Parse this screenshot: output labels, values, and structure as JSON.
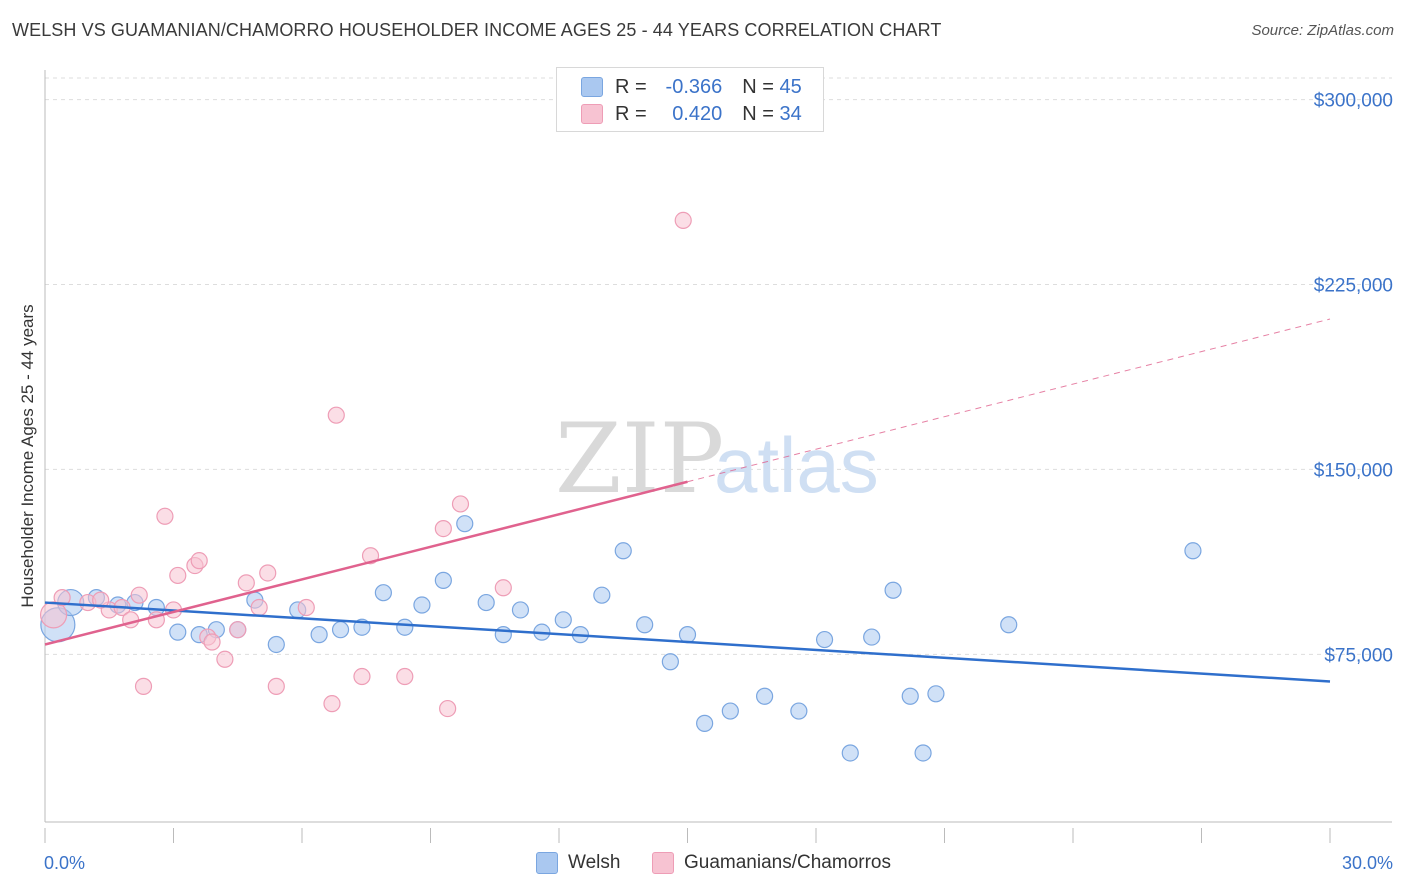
{
  "title": "WELSH VS GUAMANIAN/CHAMORRO HOUSEHOLDER INCOME AGES 25 - 44 YEARS CORRELATION CHART",
  "source": "Source: ZipAtlas.com",
  "watermark": {
    "zip": "ZIP",
    "atlas": "atlas"
  },
  "legend": {
    "rows": [
      {
        "r_label": "R =",
        "r_value": "-0.366",
        "n_label": "N =",
        "n_value": "45",
        "color": "#aac8f0",
        "border": "#7aa6e0"
      },
      {
        "r_label": "R =",
        "r_value": "0.420",
        "n_label": "N =",
        "n_value": "34",
        "color": "#f7c3d2",
        "border": "#ee9db6"
      }
    ]
  },
  "bottom_legend": [
    {
      "label": "Welsh",
      "color": "#aac8f0",
      "border": "#7aa6e0"
    },
    {
      "label": "Guamanians/Chamorros",
      "color": "#f7c3d2",
      "border": "#ee9db6"
    }
  ],
  "chart_data": {
    "type": "scatter",
    "ylabel": "Householder Income Ages 25 - 44 years",
    "x_tick_labels": [
      "0.0%",
      "30.0%"
    ],
    "y_tick_labels": [
      "$75,000",
      "$150,000",
      "$225,000",
      "$300,000"
    ],
    "y_ticks": [
      75000,
      150000,
      225000,
      300000
    ],
    "xlim": [
      0,
      30
    ],
    "ylim": [
      7000,
      312000
    ],
    "grid": true,
    "series": [
      {
        "name": "Welsh",
        "color": "#7aa6e0",
        "fill": "rgba(170,200,240,0.55)",
        "line_color": "#2f6fcc",
        "trend": {
          "x0": 0,
          "y0": 96000,
          "x1": 30,
          "y1": 64000,
          "solid_to": 30
        },
        "points": [
          [
            0.3,
            87000,
            3
          ],
          [
            0.6,
            96000,
            2
          ],
          [
            1.2,
            98000,
            1
          ],
          [
            1.7,
            95000,
            1
          ],
          [
            2.1,
            96000,
            1
          ],
          [
            2.6,
            94000,
            1
          ],
          [
            3.1,
            84000,
            1
          ],
          [
            3.6,
            83000,
            1
          ],
          [
            4.0,
            85000,
            1
          ],
          [
            4.5,
            85000,
            1
          ],
          [
            4.9,
            97000,
            1
          ],
          [
            5.4,
            79000,
            1
          ],
          [
            5.9,
            93000,
            1
          ],
          [
            6.4,
            83000,
            1
          ],
          [
            6.9,
            85000,
            1
          ],
          [
            7.4,
            86000,
            1
          ],
          [
            7.9,
            100000,
            1
          ],
          [
            8.4,
            86000,
            1
          ],
          [
            8.8,
            95000,
            1
          ],
          [
            9.3,
            105000,
            1
          ],
          [
            9.8,
            128000,
            1
          ],
          [
            10.3,
            96000,
            1
          ],
          [
            10.7,
            83000,
            1
          ],
          [
            11.1,
            93000,
            1
          ],
          [
            11.6,
            84000,
            1
          ],
          [
            12.1,
            89000,
            1
          ],
          [
            12.5,
            83000,
            1
          ],
          [
            13.0,
            99000,
            1
          ],
          [
            13.5,
            117000,
            1
          ],
          [
            14.0,
            87000,
            1
          ],
          [
            14.6,
            72000,
            1
          ],
          [
            15.0,
            83000,
            1
          ],
          [
            15.4,
            47000,
            1
          ],
          [
            16.0,
            52000,
            1
          ],
          [
            16.8,
            58000,
            1
          ],
          [
            17.6,
            52000,
            1
          ],
          [
            18.2,
            81000,
            1
          ],
          [
            18.8,
            35000,
            1
          ],
          [
            19.3,
            82000,
            1
          ],
          [
            19.8,
            101000,
            1
          ],
          [
            20.2,
            58000,
            1
          ],
          [
            20.5,
            35000,
            1
          ],
          [
            20.8,
            59000,
            1
          ],
          [
            22.5,
            87000,
            1
          ],
          [
            26.8,
            117000,
            1
          ]
        ]
      },
      {
        "name": "Guamanians/Chamorros",
        "color": "#ee9db6",
        "fill": "rgba(247,195,210,0.55)",
        "line_color": "#e0628e",
        "trend": {
          "x0": 0,
          "y0": 79000,
          "x1": 30,
          "y1": 211000,
          "solid_to": 15
        },
        "points": [
          [
            0.2,
            91000,
            2
          ],
          [
            0.4,
            98000,
            1
          ],
          [
            1.0,
            96000,
            1
          ],
          [
            1.5,
            93000,
            1
          ],
          [
            1.8,
            94000,
            1
          ],
          [
            2.0,
            89000,
            1
          ],
          [
            2.2,
            99000,
            1
          ],
          [
            2.3,
            62000,
            1
          ],
          [
            2.6,
            89000,
            1
          ],
          [
            2.8,
            131000,
            1
          ],
          [
            3.0,
            93000,
            1
          ],
          [
            3.1,
            107000,
            1
          ],
          [
            3.5,
            111000,
            1
          ],
          [
            3.6,
            113000,
            1
          ],
          [
            3.8,
            82000,
            1
          ],
          [
            3.9,
            80000,
            1
          ],
          [
            4.2,
            73000,
            1
          ],
          [
            4.5,
            85000,
            1
          ],
          [
            4.7,
            104000,
            1
          ],
          [
            5.0,
            94000,
            1
          ],
          [
            5.2,
            108000,
            1
          ],
          [
            5.4,
            62000,
            1
          ],
          [
            6.1,
            94000,
            1
          ],
          [
            6.7,
            55000,
            1
          ],
          [
            6.8,
            172000,
            1
          ],
          [
            7.4,
            66000,
            1
          ],
          [
            7.6,
            115000,
            1
          ],
          [
            8.4,
            66000,
            1
          ],
          [
            9.3,
            126000,
            1
          ],
          [
            9.4,
            53000,
            1
          ],
          [
            9.7,
            136000,
            1
          ],
          [
            10.7,
            102000,
            1
          ],
          [
            14.9,
            251000,
            1
          ],
          [
            1.3,
            97000,
            1
          ]
        ]
      }
    ]
  }
}
